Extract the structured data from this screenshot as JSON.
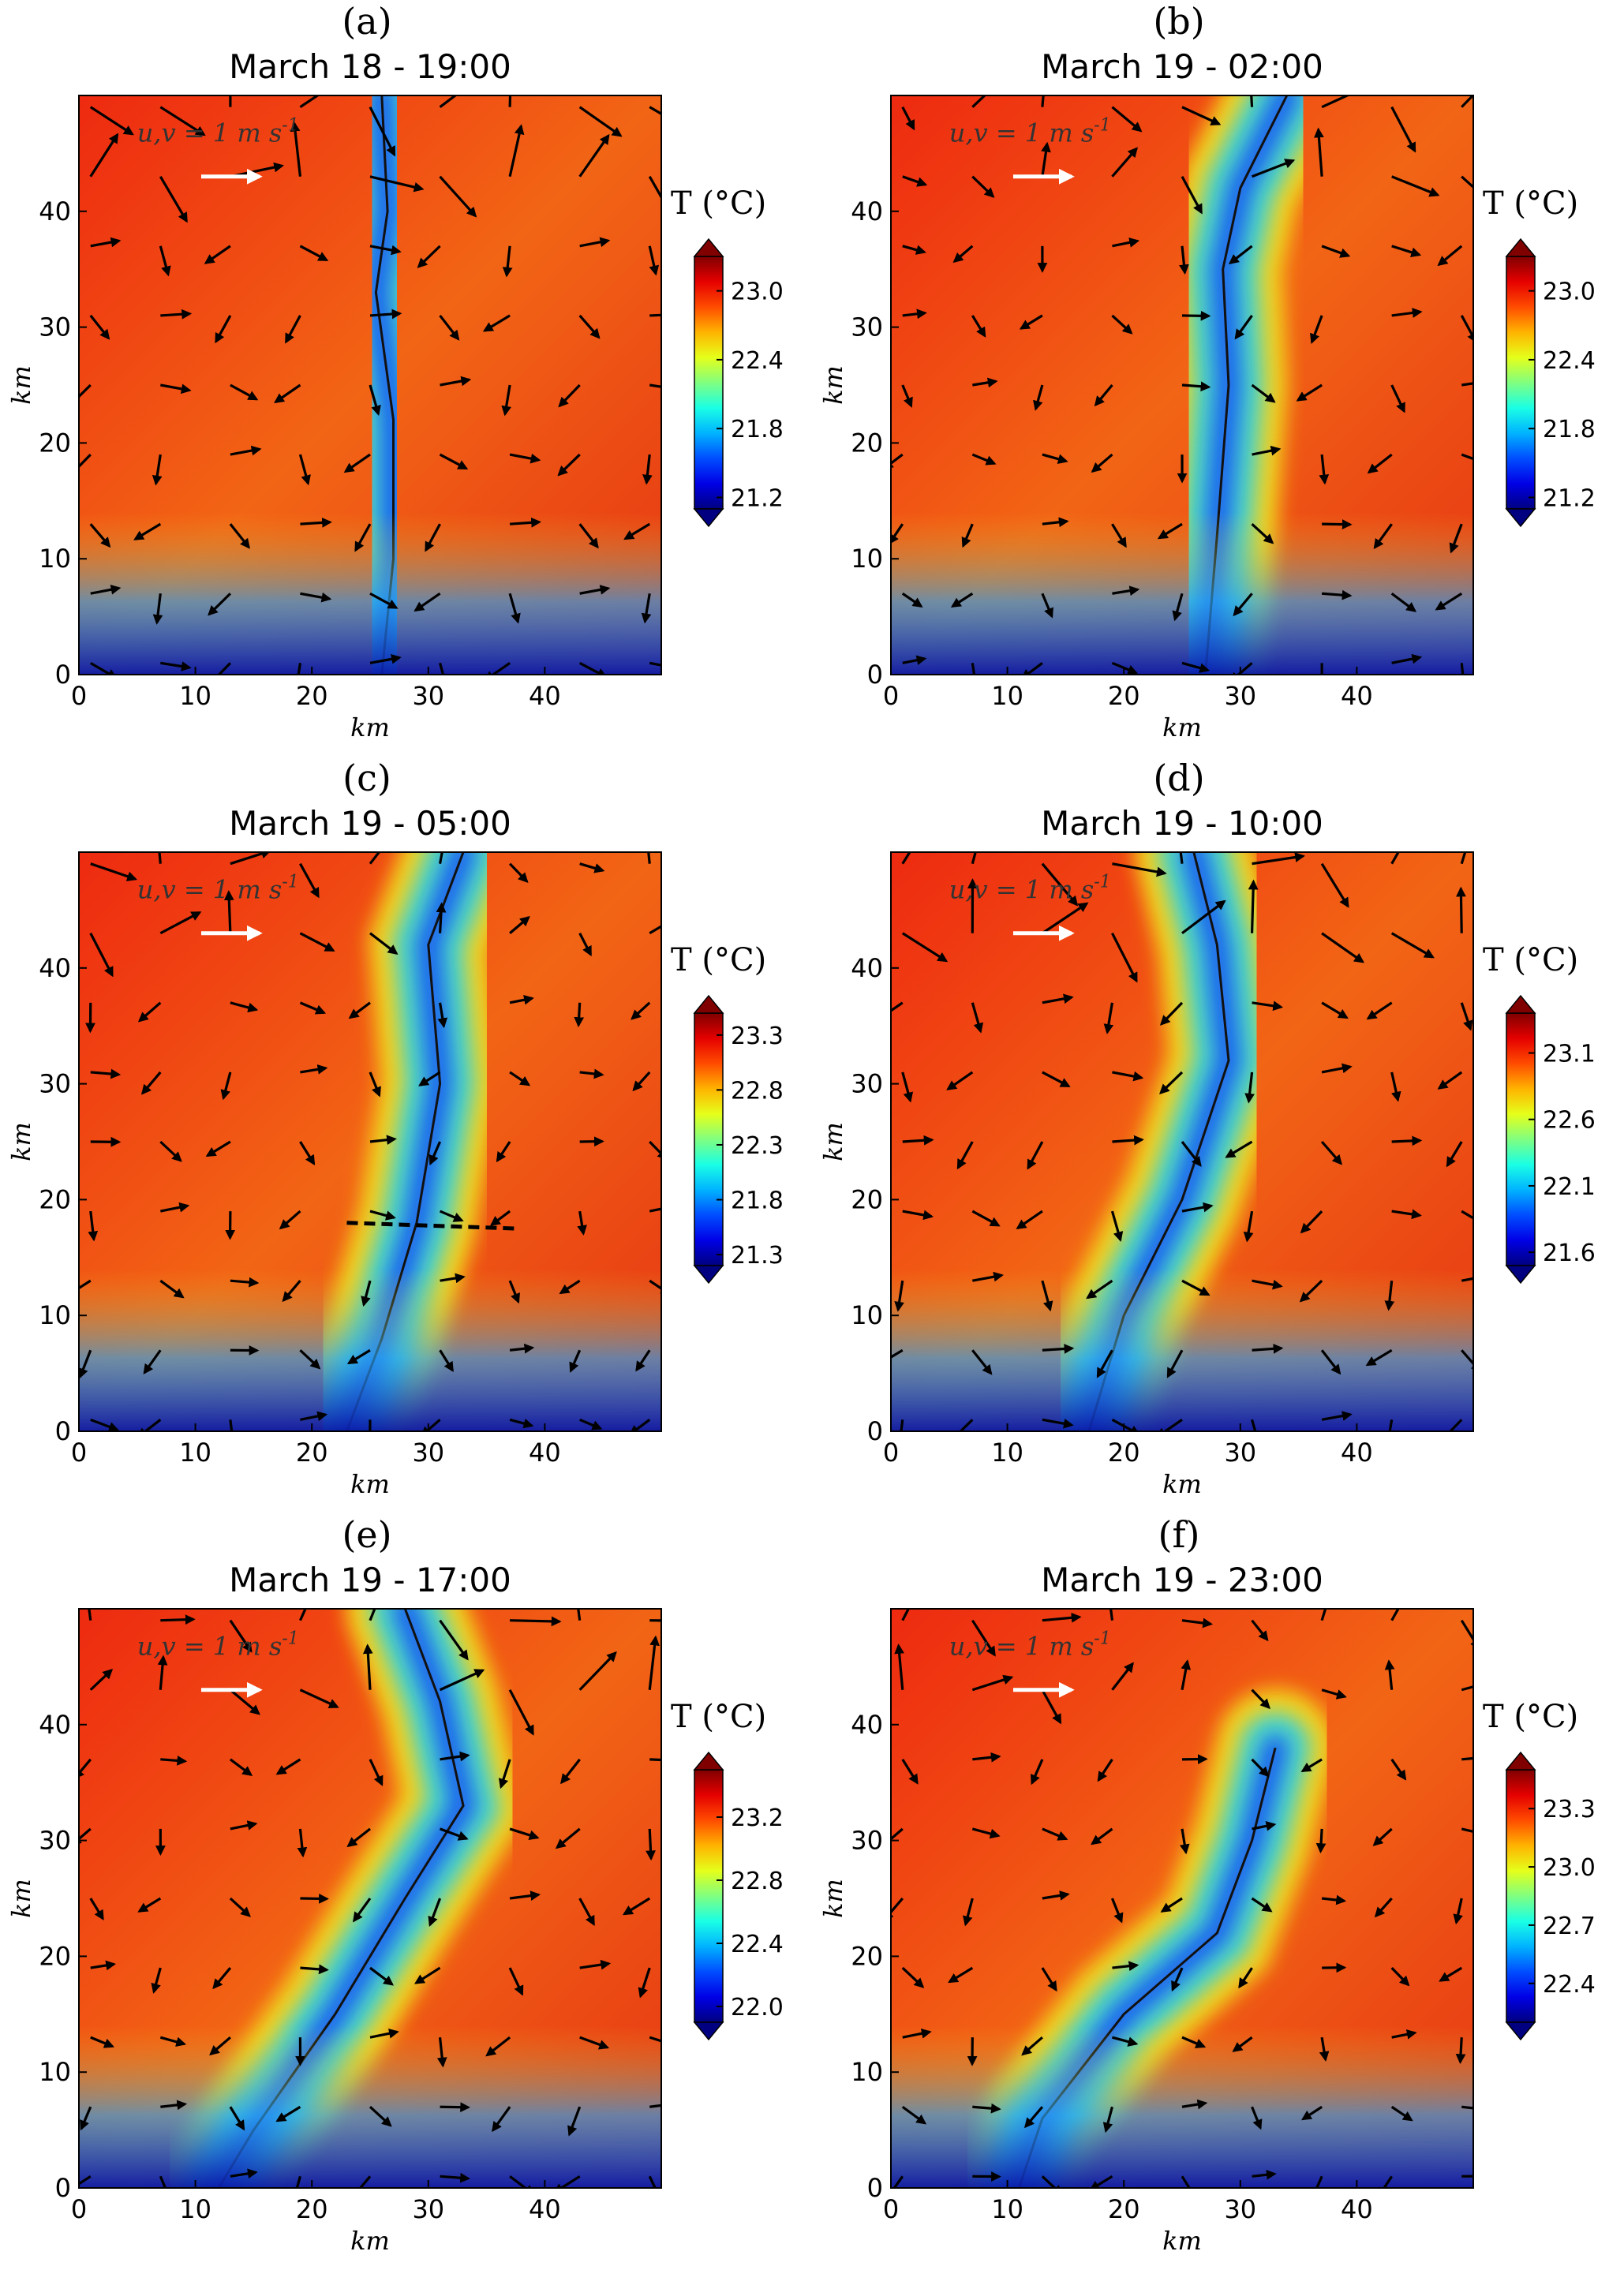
{
  "chart_data": [
    {
      "type": "heatmap",
      "panel_label": "(a)",
      "title": "March 18 - 19:00",
      "xlabel": "km",
      "ylabel": "km",
      "xticks": [
        0,
        10,
        20,
        30,
        40
      ],
      "yticks": [
        0,
        10,
        20,
        30,
        40
      ],
      "xlim": [
        0,
        50
      ],
      "ylim": [
        0,
        50
      ],
      "vector_scale_label": "u,v = 1 m s",
      "vector_scale_exponent": "-1",
      "colorbar_title": "T (°C)",
      "colorbar_ticks": [
        "23.0",
        "22.4",
        "21.8",
        "21.2"
      ],
      "colorbar_range": [
        21.1,
        23.3
      ],
      "front_path": [
        [
          26,
          50
        ],
        [
          26.5,
          40
        ],
        [
          25.5,
          33
        ],
        [
          27,
          22
        ],
        [
          27,
          10
        ],
        [
          26,
          0
        ]
      ]
    },
    {
      "type": "heatmap",
      "panel_label": "(b)",
      "title": "March 19 - 02:00",
      "xlabel": "km",
      "ylabel": "km",
      "xticks": [
        0,
        10,
        20,
        30,
        40
      ],
      "yticks": [
        0,
        10,
        20,
        30,
        40
      ],
      "xlim": [
        0,
        50
      ],
      "ylim": [
        0,
        50
      ],
      "vector_scale_label": "u,v = 1 m s",
      "vector_scale_exponent": "-1",
      "colorbar_title": "T (°C)",
      "colorbar_ticks": [
        "23.0",
        "22.4",
        "21.8",
        "21.2"
      ],
      "colorbar_range": [
        21.1,
        23.3
      ],
      "front_path": [
        [
          34,
          50
        ],
        [
          30,
          42
        ],
        [
          28.5,
          35
        ],
        [
          29,
          25
        ],
        [
          28,
          12
        ],
        [
          27,
          0
        ]
      ]
    },
    {
      "type": "heatmap",
      "panel_label": "(c)",
      "title": "March 19 - 05:00",
      "xlabel": "km",
      "ylabel": "km",
      "xticks": [
        0,
        10,
        20,
        30,
        40
      ],
      "yticks": [
        0,
        10,
        20,
        30,
        40
      ],
      "xlim": [
        0,
        50
      ],
      "ylim": [
        0,
        50
      ],
      "vector_scale_label": "u,v = 1 m s",
      "vector_scale_exponent": "-1",
      "colorbar_title": "T (°C)",
      "colorbar_ticks": [
        "23.3",
        "22.8",
        "22.3",
        "21.8",
        "21.3"
      ],
      "colorbar_range": [
        21.2,
        23.5
      ],
      "front_path": [
        [
          33,
          50
        ],
        [
          30,
          42
        ],
        [
          31,
          30
        ],
        [
          29,
          18
        ],
        [
          26,
          8
        ],
        [
          23,
          0
        ]
      ]
    },
    {
      "type": "heatmap",
      "panel_label": "(d)",
      "title": "March 19 - 10:00",
      "xlabel": "km",
      "ylabel": "km",
      "xticks": [
        0,
        10,
        20,
        30,
        40
      ],
      "yticks": [
        0,
        10,
        20,
        30,
        40
      ],
      "xlim": [
        0,
        50
      ],
      "ylim": [
        0,
        50
      ],
      "vector_scale_label": "u,v = 1 m s",
      "vector_scale_exponent": "-1",
      "colorbar_title": "T (°C)",
      "colorbar_ticks": [
        "23.1",
        "22.6",
        "22.1",
        "21.6"
      ],
      "colorbar_range": [
        21.5,
        23.4
      ],
      "front_path": [
        [
          26,
          50
        ],
        [
          28,
          42
        ],
        [
          29,
          32
        ],
        [
          25,
          20
        ],
        [
          20,
          10
        ],
        [
          17,
          0
        ]
      ]
    },
    {
      "type": "heatmap",
      "panel_label": "(e)",
      "title": "March 19 - 17:00",
      "xlabel": "km",
      "ylabel": "km",
      "xticks": [
        0,
        10,
        20,
        30,
        40
      ],
      "yticks": [
        0,
        10,
        20,
        30,
        40
      ],
      "xlim": [
        0,
        50
      ],
      "ylim": [
        0,
        50
      ],
      "vector_scale_label": "u,v = 1 m s",
      "vector_scale_exponent": "-1",
      "colorbar_title": "T (°C)",
      "colorbar_ticks": [
        "23.2",
        "22.8",
        "22.4",
        "22.0"
      ],
      "colorbar_range": [
        21.9,
        23.5
      ],
      "front_path": [
        [
          28,
          50
        ],
        [
          31,
          42
        ],
        [
          33,
          33
        ],
        [
          28,
          25
        ],
        [
          22,
          15
        ],
        [
          15,
          5
        ],
        [
          12,
          0
        ]
      ]
    },
    {
      "type": "heatmap",
      "panel_label": "(f)",
      "title": "March 19 - 23:00",
      "xlabel": "km",
      "ylabel": "km",
      "xticks": [
        0,
        10,
        20,
        30,
        40
      ],
      "yticks": [
        0,
        10,
        20,
        30,
        40
      ],
      "xlim": [
        0,
        50
      ],
      "ylim": [
        0,
        50
      ],
      "vector_scale_label": "u,v = 1 m s",
      "vector_scale_exponent": "-1",
      "colorbar_title": "T (°C)",
      "colorbar_ticks": [
        "23.3",
        "23.0",
        "22.7",
        "22.4"
      ],
      "colorbar_range": [
        22.2,
        23.5
      ],
      "front_path": [
        [
          33,
          38
        ],
        [
          31,
          30
        ],
        [
          28,
          22
        ],
        [
          20,
          15
        ],
        [
          13,
          6
        ],
        [
          11,
          0
        ]
      ]
    }
  ],
  "transect": {
    "panel": "(c)",
    "from": [
      23,
      18
    ],
    "to": [
      37.5,
      17.5
    ]
  }
}
